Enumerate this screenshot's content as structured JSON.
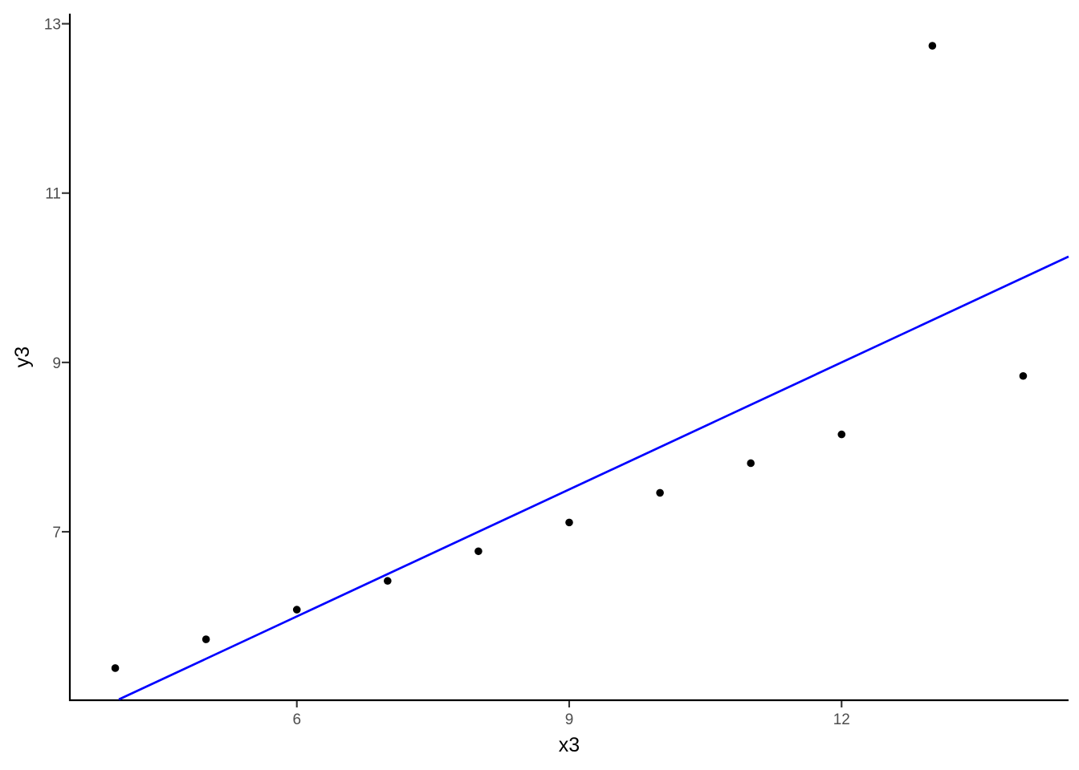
{
  "chart_data": {
    "type": "scatter",
    "title": "",
    "xlabel": "x3",
    "ylabel": "y3",
    "points": [
      {
        "x": 4,
        "y": 5.39
      },
      {
        "x": 5,
        "y": 5.73
      },
      {
        "x": 6,
        "y": 6.08
      },
      {
        "x": 7,
        "y": 6.42
      },
      {
        "x": 8,
        "y": 6.77
      },
      {
        "x": 9,
        "y": 7.11
      },
      {
        "x": 10,
        "y": 7.46
      },
      {
        "x": 11,
        "y": 7.81
      },
      {
        "x": 12,
        "y": 8.15
      },
      {
        "x": 13,
        "y": 12.74
      },
      {
        "x": 14,
        "y": 8.84
      }
    ],
    "xlim": [
      3.5,
      14.5
    ],
    "ylim": [
      5.02,
      13.11
    ],
    "x_ticks": [
      {
        "value": 6,
        "label": "6"
      },
      {
        "value": 9,
        "label": "9"
      },
      {
        "value": 12,
        "label": "12"
      }
    ],
    "y_ticks": [
      {
        "value": 7,
        "label": "7"
      },
      {
        "value": 9,
        "label": "9"
      },
      {
        "value": 11,
        "label": "11"
      },
      {
        "value": 13,
        "label": "13"
      }
    ],
    "regression_line": {
      "intercept": 3.0,
      "slope": 0.5,
      "color": "#0000FF"
    },
    "grid": false,
    "legend": null
  },
  "colors": {
    "background": "#FFFFFF",
    "point": "#000000",
    "axis_line": "#000000",
    "tick_mark": "#333333",
    "tick_label": "#4D4D4D",
    "axis_title": "#000000"
  }
}
